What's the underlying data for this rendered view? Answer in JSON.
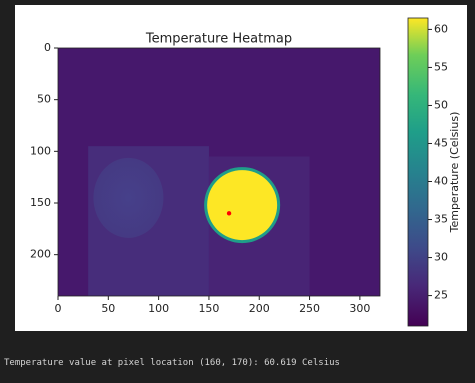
{
  "chart_data": {
    "type": "image",
    "title": "Temperature Heatmap",
    "xlim": [
      0,
      320
    ],
    "xticks": [
      0,
      50,
      100,
      150,
      200,
      250,
      300
    ],
    "ylim": [
      240,
      0
    ],
    "yticks": [
      0,
      50,
      100,
      150,
      200
    ],
    "colorbar": {
      "label": "Temperature (Celsius)",
      "lim": [
        21,
        61.5
      ],
      "ticks": [
        25,
        30,
        35,
        40,
        45,
        50,
        55,
        60
      ]
    },
    "points": {
      "x": [
        170
      ],
      "y": [
        160
      ],
      "color": "#ff0000"
    }
  },
  "output": "Temperature value at pixel location (160, 170): 60.619 Celsius"
}
